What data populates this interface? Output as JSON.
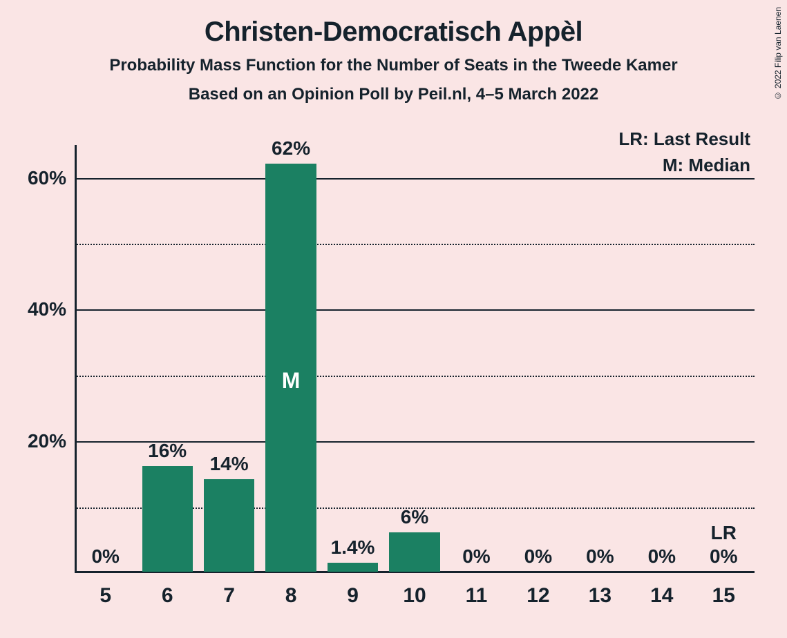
{
  "title": "Christen-Democratisch Appèl",
  "subtitle1": "Probability Mass Function for the Number of Seats in the Tweede Kamer",
  "subtitle2": "Based on an Opinion Poll by Peil.nl, 4–5 March 2022",
  "copyright": "© 2022 Filip van Laenen",
  "legend": {
    "lr": "LR: Last Result",
    "m": "M: Median"
  },
  "chart": {
    "type": "bar",
    "background_color": "#fae5e5",
    "bar_color": "#1b8062",
    "text_color": "#15222c",
    "grid_color": "#15222c",
    "ylim": [
      0,
      65
    ],
    "y_major_ticks": [
      20,
      40,
      60
    ],
    "y_minor_ticks": [
      10,
      30,
      50
    ],
    "y_tick_labels": [
      "20%",
      "40%",
      "60%"
    ],
    "categories": [
      "5",
      "6",
      "7",
      "8",
      "9",
      "10",
      "11",
      "12",
      "13",
      "14",
      "15"
    ],
    "values": [
      0,
      16,
      14,
      62,
      1.4,
      6,
      0,
      0,
      0,
      0,
      0
    ],
    "value_labels": [
      "0%",
      "16%",
      "14%",
      "62%",
      "1.4%",
      "6%",
      "0%",
      "0%",
      "0%",
      "0%",
      "0%"
    ],
    "median_index": 3,
    "median_label": "M",
    "lr_index": 10,
    "lr_label": "LR",
    "bar_width_ratio": 0.82,
    "title_fontsize": 40,
    "subtitle_fontsize": 24,
    "axis_label_fontsize": 28,
    "tick_fontsize": 30,
    "legend_fontsize": 26
  }
}
